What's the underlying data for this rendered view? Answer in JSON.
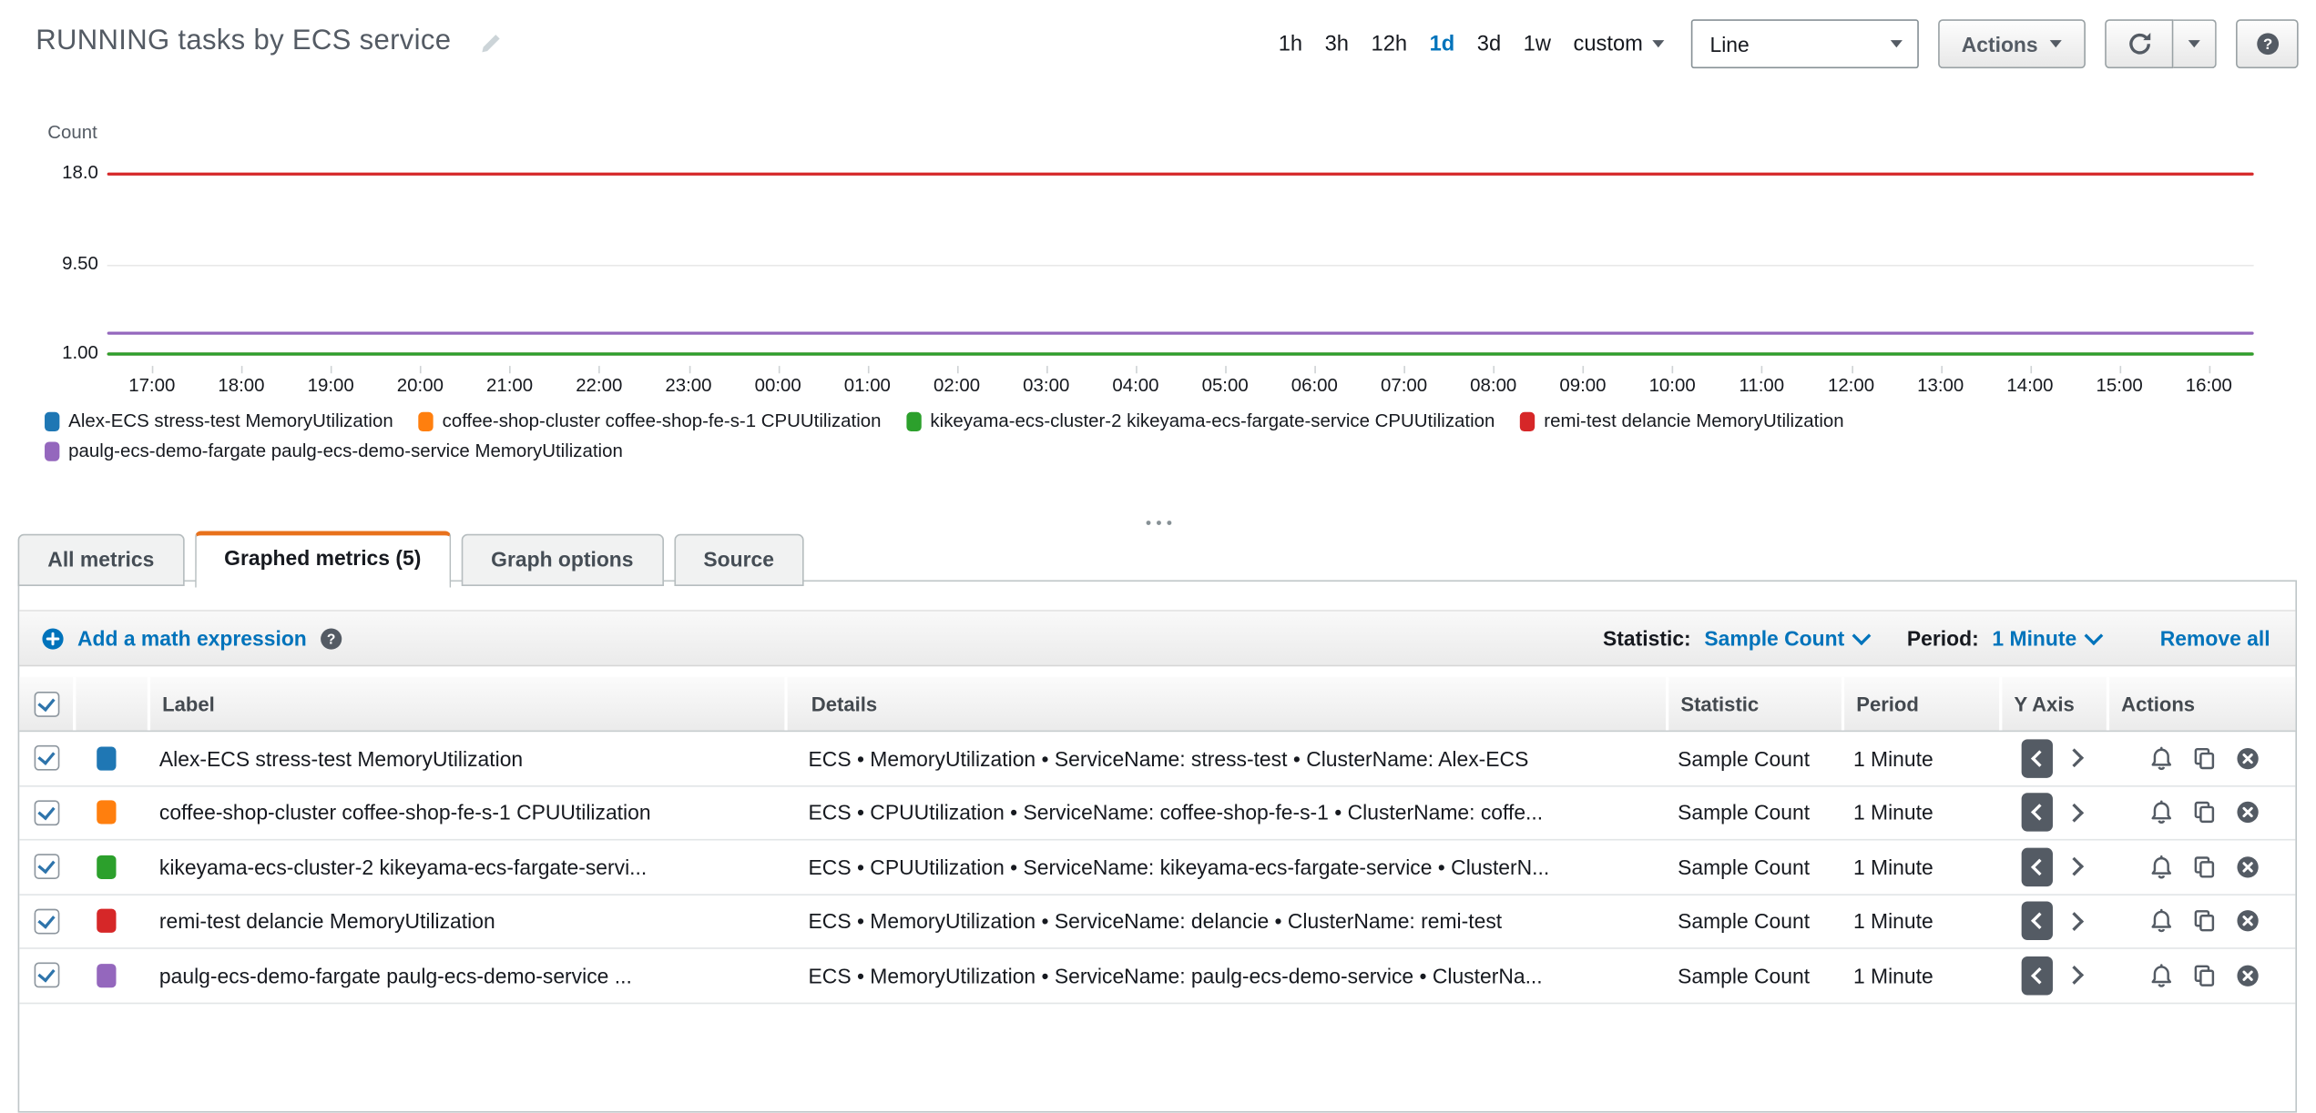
{
  "colors": {
    "accent_blue": "#0073bb",
    "tab_active_orange": "#e8711c",
    "button_text_gray": "#545b64",
    "palette": [
      "#1f77b4",
      "#ff7f0e",
      "#2ca02c",
      "#d62728",
      "#9467bd"
    ]
  },
  "header": {
    "title": "RUNNING tasks by ECS service",
    "time_ranges": [
      "1h",
      "3h",
      "12h",
      "1d",
      "3d",
      "1w",
      "custom"
    ],
    "active_time_range": "1d",
    "chart_type": "Line",
    "actions_label": "Actions"
  },
  "chart_data": {
    "type": "line",
    "title": "RUNNING tasks by ECS service",
    "ylabel": "Count",
    "y_tick_labels": [
      "18.0",
      "9.50",
      "1.00"
    ],
    "y_ticks": [
      18.0,
      9.5,
      1.0
    ],
    "ylim": [
      1.0,
      18.0
    ],
    "grid": true,
    "legend_position": "bottom-left",
    "x_ticks": [
      "17:00",
      "18:00",
      "19:00",
      "20:00",
      "21:00",
      "22:00",
      "23:00",
      "00:00",
      "01:00",
      "02:00",
      "03:00",
      "04:00",
      "05:00",
      "06:00",
      "07:00",
      "08:00",
      "09:00",
      "10:00",
      "11:00",
      "12:00",
      "13:00",
      "14:00",
      "15:00",
      "16:00"
    ],
    "series": [
      {
        "name": "Alex-ECS stress-test MemoryUtilization",
        "color": "#1f77b4",
        "shape": "constant",
        "value": 1.0
      },
      {
        "name": "coffee-shop-cluster coffee-shop-fe-s-1 CPUUtilization",
        "color": "#ff7f0e",
        "shape": "constant",
        "value": 1.0
      },
      {
        "name": "kikeyama-ecs-cluster-2 kikeyama-ecs-fargate-service CPUUtilization",
        "color": "#2ca02c",
        "shape": "constant",
        "value": 1.0
      },
      {
        "name": "remi-test delancie MemoryUtilization",
        "color": "#d62728",
        "shape": "constant",
        "value": 18.0
      },
      {
        "name": "paulg-ecs-demo-fargate paulg-ecs-demo-service MemoryUtilization",
        "color": "#9467bd",
        "shape": "constant",
        "value": 3.0
      }
    ]
  },
  "tabs": [
    {
      "label": "All metrics",
      "active": false
    },
    {
      "label": "Graphed metrics (5)",
      "active": true
    },
    {
      "label": "Graph options",
      "active": false
    },
    {
      "label": "Source",
      "active": false
    }
  ],
  "metrics_toolbar": {
    "add_math_label": "Add a math expression",
    "statistic_label": "Statistic:",
    "statistic_value": "Sample Count",
    "period_label": "Period:",
    "period_value": "1 Minute",
    "remove_all_label": "Remove all"
  },
  "table": {
    "select_all_checked": true,
    "columns": {
      "label": "Label",
      "details": "Details",
      "statistic": "Statistic",
      "period": "Period",
      "y_axis": "Y Axis",
      "actions": "Actions"
    },
    "rows": [
      {
        "checked": true,
        "color": "#1f77b4",
        "label": "Alex-ECS stress-test MemoryUtilization",
        "details": "ECS • MemoryUtilization • ServiceName: stress-test • ClusterName: Alex-ECS",
        "statistic": "Sample Count",
        "period": "1 Minute"
      },
      {
        "checked": true,
        "color": "#ff7f0e",
        "label": "coffee-shop-cluster coffee-shop-fe-s-1 CPUUtilization",
        "details": "ECS • CPUUtilization • ServiceName: coffee-shop-fe-s-1 • ClusterName: coffe...",
        "statistic": "Sample Count",
        "period": "1 Minute"
      },
      {
        "checked": true,
        "color": "#2ca02c",
        "label": "kikeyama-ecs-cluster-2 kikeyama-ecs-fargate-servi...",
        "details": "ECS • CPUUtilization • ServiceName: kikeyama-ecs-fargate-service • ClusterN...",
        "statistic": "Sample Count",
        "period": "1 Minute"
      },
      {
        "checked": true,
        "color": "#d62728",
        "label": "remi-test delancie MemoryUtilization",
        "details": "ECS • MemoryUtilization • ServiceName: delancie • ClusterName: remi-test",
        "statistic": "Sample Count",
        "period": "1 Minute"
      },
      {
        "checked": true,
        "color": "#9467bd",
        "label": "paulg-ecs-demo-fargate paulg-ecs-demo-service ...",
        "details": "ECS • MemoryUtilization • ServiceName: paulg-ecs-demo-service • ClusterNa...",
        "statistic": "Sample Count",
        "period": "1 Minute"
      }
    ]
  }
}
